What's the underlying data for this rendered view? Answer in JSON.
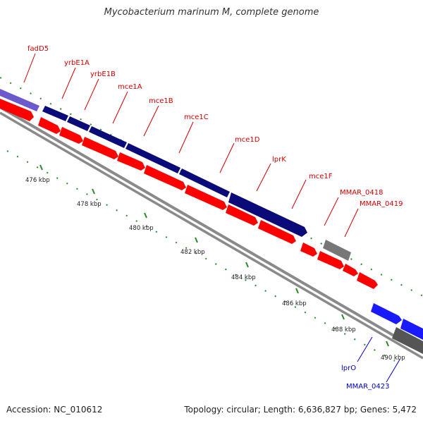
{
  "title": "Mycobacterium marinum M, complete genome",
  "footer": {
    "accession_label": "Accession:",
    "accession": "NC_010612",
    "topology_text": "Topology: circular; Length: 6,636,827 bp; Genes: 5,472"
  },
  "colors": {
    "forward_feature": "#0a0a78",
    "reverse_feature": "#ff0000",
    "pseudogene": "#777777",
    "other_feature": "#1a1aff",
    "backbone": "#8a8a8a",
    "ticks": "#2a8a2a",
    "label_red": "#d10000",
    "label_blue": "#0000c8"
  },
  "ticks": [
    {
      "label": "476 kbp"
    },
    {
      "label": "478 kbp"
    },
    {
      "label": "480 kbp"
    },
    {
      "label": "482 kbp"
    },
    {
      "label": "484 kbp"
    },
    {
      "label": "486 kbp"
    },
    {
      "label": "488 kbp"
    },
    {
      "label": "490 kbp"
    }
  ],
  "gene_labels": [
    {
      "name": "fadD5",
      "color": "red"
    },
    {
      "name": "yrbE1A",
      "color": "red"
    },
    {
      "name": "yrbE1B",
      "color": "red"
    },
    {
      "name": "mce1A",
      "color": "red"
    },
    {
      "name": "mce1B",
      "color": "red"
    },
    {
      "name": "mce1C",
      "color": "red"
    },
    {
      "name": "mce1D",
      "color": "red"
    },
    {
      "name": "lprK",
      "color": "red"
    },
    {
      "name": "mce1F",
      "color": "red"
    },
    {
      "name": "MMAR_0418",
      "color": "red"
    },
    {
      "name": "MMAR_0419",
      "color": "red"
    },
    {
      "name": "lprO",
      "color": "blue"
    },
    {
      "name": "MMAR_0423",
      "color": "blue"
    }
  ]
}
